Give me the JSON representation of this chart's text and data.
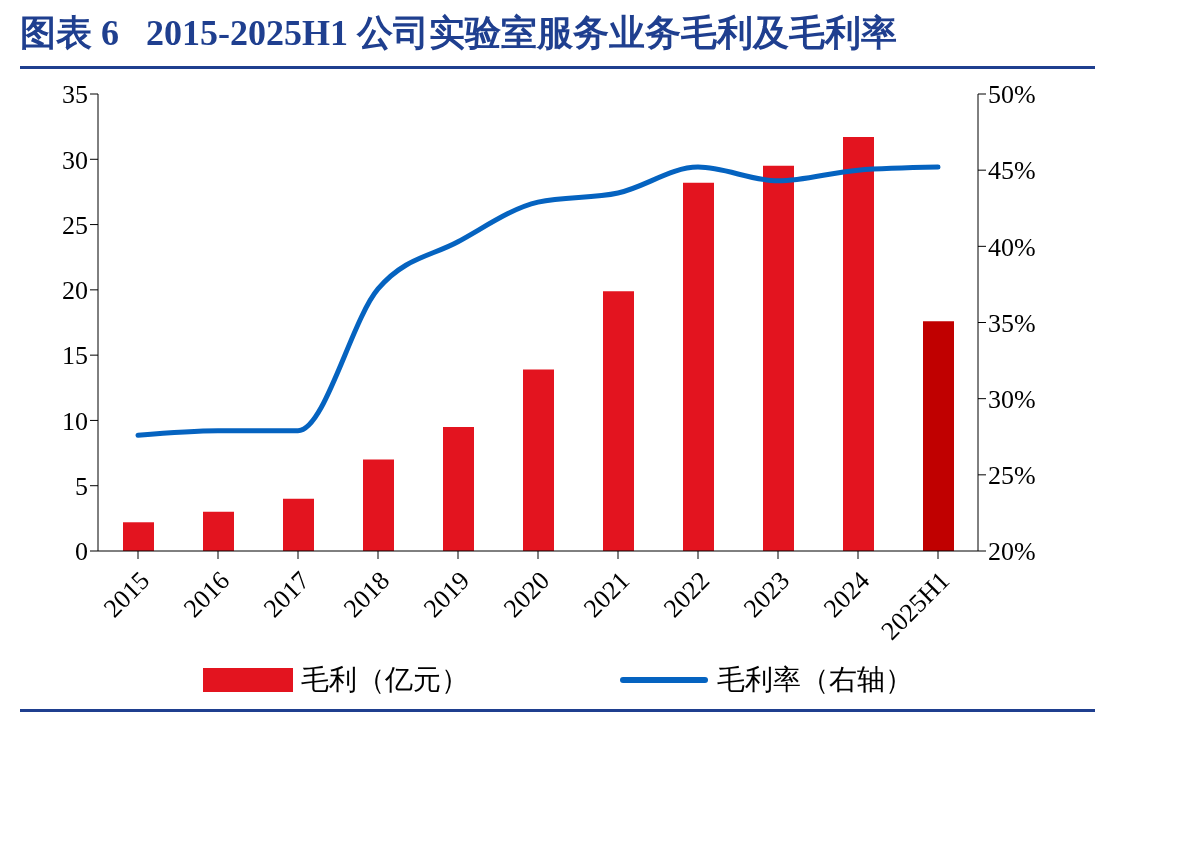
{
  "chart_data": {
    "type": "bar",
    "title": "图表 6   2015-2025H1 公司实验室服务业务毛利及毛利率",
    "categories": [
      "2015",
      "2016",
      "2017",
      "2018",
      "2019",
      "2020",
      "2021",
      "2022",
      "2023",
      "2024",
      "2025H1"
    ],
    "series": [
      {
        "name": "毛利（亿元）",
        "color": "#e3141f",
        "colors": [
          "#e3141f",
          "#e3141f",
          "#e3141f",
          "#e3141f",
          "#e3141f",
          "#e3141f",
          "#e3141f",
          "#e3141f",
          "#e3141f",
          "#e3141f",
          "#c00000"
        ],
        "values": [
          2.2,
          3.0,
          4.0,
          7.0,
          9.5,
          13.9,
          19.9,
          28.2,
          29.5,
          31.7,
          17.6
        ]
      },
      {
        "type": "line",
        "name": "毛利率（右轴）",
        "color": "#0563c0",
        "axis": "y2",
        "values": [
          27.6,
          27.9,
          27.9,
          37.2,
          40.3,
          42.9,
          43.5,
          45.2,
          44.3,
          45.0,
          45.2
        ]
      }
    ],
    "ylim": [
      0,
      35
    ],
    "yticks": [
      0,
      5,
      10,
      15,
      20,
      25,
      30,
      35
    ],
    "y2lim": [
      20,
      50
    ],
    "y2ticks": [
      {
        "value": 20,
        "label": "20%"
      },
      {
        "value": 25,
        "label": "25%"
      },
      {
        "value": 30,
        "label": "30%"
      },
      {
        "value": 35,
        "label": "35%"
      },
      {
        "value": 40,
        "label": "40%"
      },
      {
        "value": 45,
        "label": "45%"
      },
      {
        "value": 50,
        "label": "50%"
      }
    ],
    "legend": "bottom",
    "marker": "none"
  }
}
